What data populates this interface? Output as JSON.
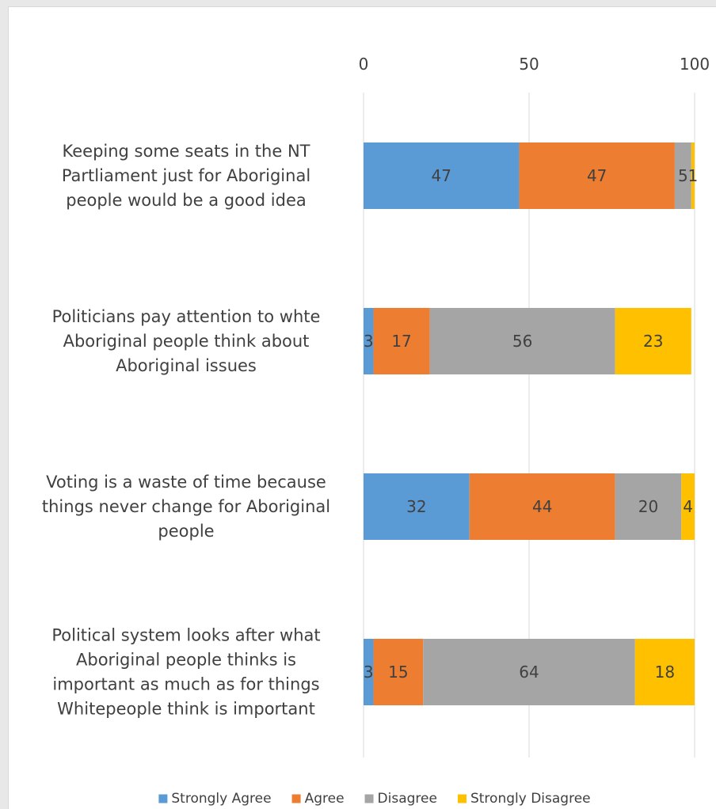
{
  "chart_data": {
    "type": "bar",
    "orientation": "horizontal",
    "stacked": true,
    "title": "",
    "xlabel": "",
    "ylabel": "",
    "xlim": [
      0,
      100
    ],
    "x_ticks": [
      0,
      50,
      100
    ],
    "grid": true,
    "legend_position": "bottom",
    "categories": [
      [
        "Keeping some seats in the NT",
        "Partliament just for Aboriginal",
        "people would be a good idea"
      ],
      [
        "Politicians pay attention to whte",
        "Aboriginal people think about",
        "Aboriginal issues"
      ],
      [
        "Voting is a waste of time because",
        "things never change for Aboriginal",
        "people"
      ],
      [
        "Political system looks after what",
        "Aboriginal people thinks is",
        "important as much as for things",
        "Whitepeople think is important"
      ]
    ],
    "series": [
      {
        "name": "Strongly Agree",
        "color": "#5b9bd5",
        "values": [
          47,
          3,
          32,
          3
        ]
      },
      {
        "name": "Agree",
        "color": "#ed7d31",
        "values": [
          47,
          17,
          44,
          15
        ]
      },
      {
        "name": "Disagree",
        "color": "#a5a5a5",
        "values": [
          5,
          56,
          20,
          64
        ]
      },
      {
        "name": "Strongly Disagree",
        "color": "#ffc000",
        "values": [
          1,
          23,
          4,
          18
        ]
      }
    ]
  }
}
